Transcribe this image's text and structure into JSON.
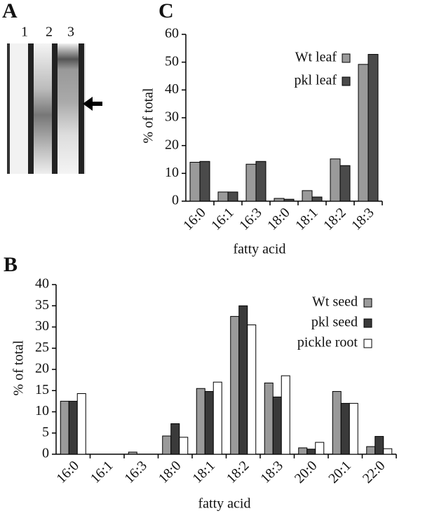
{
  "panel_labels": [
    "A",
    "B",
    "C"
  ],
  "gel": {
    "lanes": [
      "1",
      "2",
      "3"
    ]
  },
  "chart_data": [
    {
      "type": "bar",
      "panel": "C",
      "y_label": "% of total",
      "x_label": "fatty acid",
      "categories": [
        "16:0",
        "16:1",
        "16:3",
        "18:0",
        "18:1",
        "18:2",
        "18:3"
      ],
      "series": [
        {
          "name": "Wt leaf",
          "color": "#9a9a9a",
          "values": [
            14,
            3.3,
            13.3,
            1,
            3.8,
            15.2,
            49.2
          ]
        },
        {
          "name": "pkl leaf",
          "color": "#4a4a4a",
          "values": [
            14.3,
            3.3,
            14.3,
            0.7,
            1.5,
            12.8,
            52.8
          ]
        }
      ],
      "ylim": [
        0,
        60
      ],
      "yticks": [
        0,
        10,
        20,
        30,
        40,
        50,
        60
      ]
    },
    {
      "type": "bar",
      "panel": "B",
      "y_label": "% of total",
      "x_label": "fatty acid",
      "categories": [
        "16:0",
        "16:1",
        "16:3",
        "18:0",
        "18:1",
        "18:2",
        "18:3",
        "20:0",
        "20:1",
        "22:0"
      ],
      "series": [
        {
          "name": "Wt seed",
          "color": "#9a9a9a",
          "values": [
            12.5,
            0,
            0.5,
            4.3,
            15.5,
            32.5,
            16.8,
            1.5,
            14.8,
            1.8
          ]
        },
        {
          "name": "pkl seed",
          "color": "#3a3a3a",
          "values": [
            12.5,
            0,
            0,
            7.2,
            14.8,
            35,
            13.5,
            1.2,
            12,
            4.2
          ]
        },
        {
          "name": "pickle root",
          "color": "#ffffff",
          "values": [
            14.3,
            0,
            0,
            4,
            17,
            30.5,
            18.5,
            2.8,
            12,
            1.3
          ]
        }
      ],
      "ylim": [
        0,
        40
      ],
      "yticks": [
        0,
        5,
        10,
        15,
        20,
        25,
        30,
        35,
        40
      ]
    }
  ]
}
